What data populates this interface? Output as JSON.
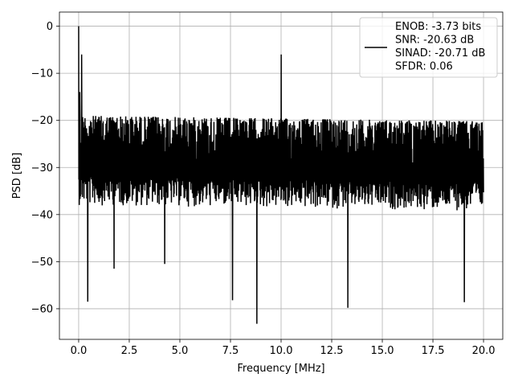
{
  "chart_data": {
    "type": "line",
    "xlabel": "Frequency [MHz]",
    "ylabel": "PSD [dB]",
    "xlim": [
      -0.95,
      20.95
    ],
    "ylim": [
      -66.5,
      3.0
    ],
    "xticks": [
      0.0,
      2.5,
      5.0,
      7.5,
      10.0,
      12.5,
      15.0,
      17.5,
      20.0
    ],
    "xtick_labels": [
      "0.0",
      "2.5",
      "5.0",
      "7.5",
      "10.0",
      "12.5",
      "15.0",
      "17.5",
      "20.0"
    ],
    "yticks": [
      0,
      -10,
      -20,
      -30,
      -40,
      -50,
      -60
    ],
    "ytick_labels": [
      "0",
      "−10",
      "−20",
      "−30",
      "−40",
      "−50",
      "−60"
    ],
    "grid": true,
    "legend_position": "top-right",
    "series": [
      {
        "name": "ENOB: -3.73 bits\nSNR: -20.63 dB\nSINAD: -20.71 dB\nSFDR: 0.06",
        "color": "#000000",
        "x_range": [
          0,
          20
        ],
        "points": 2048,
        "noise_floor_band": [
          -38,
          -16
        ],
        "peaks": [
          {
            "x": 0.0,
            "y": 0.0
          },
          {
            "x": 0.05,
            "y": -14
          },
          {
            "x": 0.15,
            "y": -6
          },
          {
            "x": 10.0,
            "y": -6
          }
        ],
        "deep_dips": [
          {
            "x": 0.45,
            "y": -58.5
          },
          {
            "x": 1.75,
            "y": -51.5
          },
          {
            "x": 4.25,
            "y": -50.5
          },
          {
            "x": 7.6,
            "y": -58.2
          },
          {
            "x": 8.8,
            "y": -63.2
          },
          {
            "x": 13.3,
            "y": -59.8
          },
          {
            "x": 19.05,
            "y": -58.6
          }
        ]
      }
    ]
  }
}
